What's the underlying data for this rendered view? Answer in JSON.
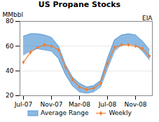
{
  "chart_data": {
    "type": "line",
    "title": "US Propane Stocks",
    "ylabel": "MMbbl",
    "annotations": [
      "EIA"
    ],
    "categories": [
      "Jul-07",
      null,
      null,
      null,
      "Nov-07",
      null,
      null,
      null,
      "Mar-08",
      null,
      null,
      null,
      "Jul-08",
      null,
      null,
      null,
      "Nov-08",
      null,
      null
    ],
    "series": [
      {
        "name": "Average Range",
        "type": "band",
        "color": "#5b9bd5",
        "upper": [
          68,
          70,
          70,
          69,
          67,
          60,
          45,
          35,
          30,
          27,
          28,
          32,
          50,
          65,
          69,
          70,
          69,
          64,
          57
        ],
        "lower": [
          53,
          56,
          58,
          57,
          56,
          50,
          37,
          28,
          23,
          22,
          23,
          27,
          42,
          56,
          61,
          62,
          61,
          56,
          49
        ]
      },
      {
        "name": "Weekly",
        "type": "line",
        "color": "#ed7d31",
        "marker": "diamond",
        "values": [
          47,
          55,
          59,
          61,
          60,
          57,
          43,
          33,
          27,
          25,
          26,
          30,
          46,
          59,
          61,
          61,
          60,
          58,
          52
        ]
      }
    ],
    "ylim": [
      20,
      80
    ],
    "yticks": [
      20,
      40,
      60,
      80
    ],
    "grid": true,
    "legend": "bottom"
  }
}
